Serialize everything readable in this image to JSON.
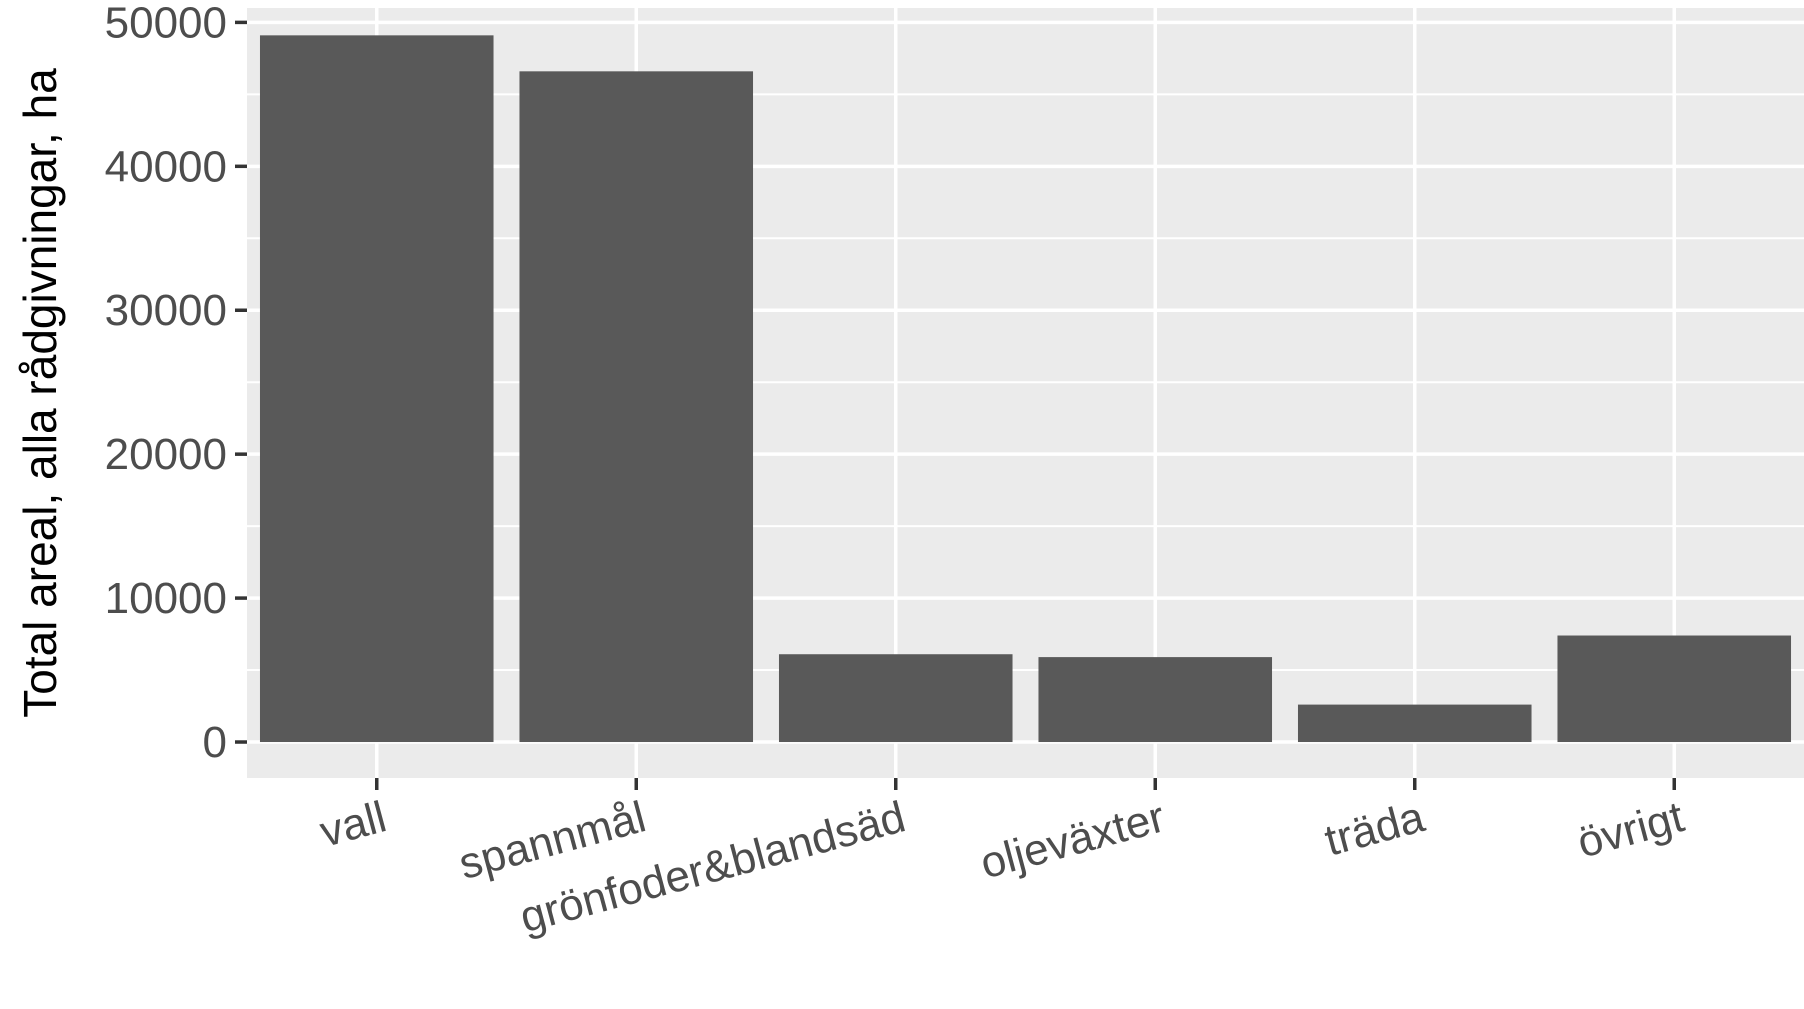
{
  "chart_data": {
    "type": "bar",
    "categories": [
      "vall",
      "spannmål",
      "grönfoder&blandsäd",
      "oljeväxter",
      "träda",
      "övrigt"
    ],
    "values": [
      49100,
      46600,
      6100,
      5900,
      2600,
      7400
    ],
    "title": "",
    "xlabel": "",
    "ylabel": "Total areal, alla rådgivningar, ha",
    "ylim": [
      -2500,
      51000
    ],
    "yticks": [
      0,
      10000,
      20000,
      30000,
      40000,
      50000
    ],
    "grid": true,
    "colors": {
      "bar": "#595959",
      "panel": "#ebebeb",
      "grid": "#ffffff",
      "tick": "#333333",
      "tick_label": "#4d4d4d"
    }
  }
}
